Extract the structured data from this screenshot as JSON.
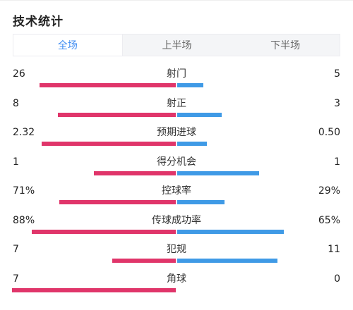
{
  "header": {
    "title": "技术统计"
  },
  "tabs": [
    {
      "label": "全场",
      "active": true
    },
    {
      "label": "上半场",
      "active": false
    },
    {
      "label": "下半场",
      "active": false
    }
  ],
  "colors": {
    "home": "#e0356a",
    "away": "#3f9ae6",
    "active_tab": "#3d8bf2"
  },
  "stats": [
    {
      "label": "射门",
      "home": "26",
      "away": "5",
      "home_share": 0.83,
      "away_share": 0.16
    },
    {
      "label": "射正",
      "home": "8",
      "away": "3",
      "home_share": 0.72,
      "away_share": 0.27
    },
    {
      "label": "预期进球",
      "home": "2.32",
      "away": "0.50",
      "home_share": 0.82,
      "away_share": 0.18
    },
    {
      "label": "得分机会",
      "home": "1",
      "away": "1",
      "home_share": 0.5,
      "away_share": 0.5
    },
    {
      "label": "控球率",
      "home": "71%",
      "away": "29%",
      "home_share": 0.71,
      "away_share": 0.29
    },
    {
      "label": "传球成功率",
      "home": "88%",
      "away": "65%",
      "home_share": 0.88,
      "away_share": 0.65
    },
    {
      "label": "犯规",
      "home": "7",
      "away": "11",
      "home_share": 0.39,
      "away_share": 0.61
    },
    {
      "label": "角球",
      "home": "7",
      "away": "0",
      "home_share": 1.0,
      "away_share": 0.0
    }
  ]
}
